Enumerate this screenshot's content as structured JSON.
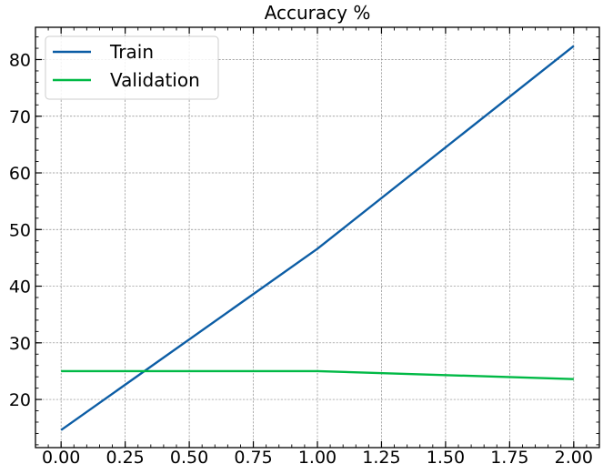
{
  "chart_data": {
    "type": "line",
    "title": "Accuracy %",
    "xlabel": "",
    "ylabel": "",
    "x": [
      0,
      1,
      2
    ],
    "xlim": [
      -0.1,
      2.1
    ],
    "ylim": [
      11.5,
      85.7
    ],
    "xticks": [
      "0.00",
      "0.25",
      "0.50",
      "0.75",
      "1.00",
      "1.25",
      "1.50",
      "1.75",
      "2.00"
    ],
    "yticks": [
      "20",
      "30",
      "40",
      "50",
      "60",
      "70",
      "80"
    ],
    "grid": true,
    "legend_position": "top-left",
    "series": [
      {
        "name": "Train",
        "color": "#0C5DA5",
        "values": [
          14.6,
          46.6,
          82.4
        ]
      },
      {
        "name": "Validation",
        "color": "#00B945",
        "values": [
          25.0,
          25.0,
          23.6
        ]
      }
    ]
  }
}
